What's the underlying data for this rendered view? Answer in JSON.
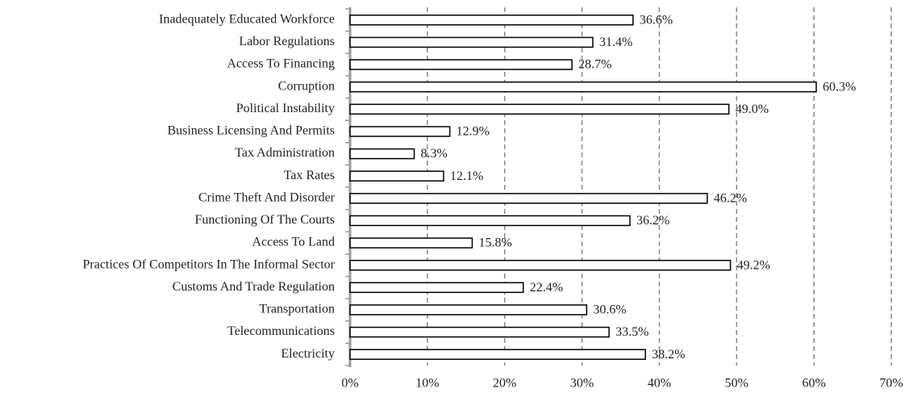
{
  "chart_data": {
    "type": "bar",
    "orientation": "horizontal",
    "categories": [
      "Inadequately Educated Workforce",
      "Labor Regulations",
      "Access To Financing",
      "Corruption",
      "Political Instability",
      "Business Licensing And Permits",
      "Tax Administration",
      "Tax Rates",
      "Crime Theft And Disorder",
      "Functioning Of The Courts",
      "Access To Land",
      "Practices Of Competitors In The Informal Sector",
      "Customs And Trade Regulation",
      "Transportation",
      "Telecommunications",
      "Electricity"
    ],
    "values": [
      36.6,
      31.4,
      28.7,
      60.3,
      49.0,
      12.9,
      8.3,
      12.1,
      46.2,
      36.2,
      15.8,
      49.2,
      22.4,
      30.6,
      33.5,
      38.2
    ],
    "value_labels": [
      "36.6%",
      "31.4%",
      "28.7%",
      "60.3%",
      "49.0%",
      "12.9%",
      "8.3%",
      "12.1%",
      "46.2%",
      "36.2%",
      "15.8%",
      "49.2%",
      "22.4%",
      "30.6%",
      "33.5%",
      "38.2%"
    ],
    "color": "#ffffff",
    "xlim": [
      0,
      70
    ],
    "xticks": [
      {
        "value": 0,
        "label": "0%"
      },
      {
        "value": 10,
        "label": "10%"
      },
      {
        "value": 20,
        "label": "20%"
      },
      {
        "value": 30,
        "label": "30%"
      },
      {
        "value": 40,
        "label": "40%"
      },
      {
        "value": 50,
        "label": "50%"
      },
      {
        "value": 60,
        "label": "60%"
      },
      {
        "value": 70,
        "label": "70%"
      }
    ],
    "grid": true
  }
}
